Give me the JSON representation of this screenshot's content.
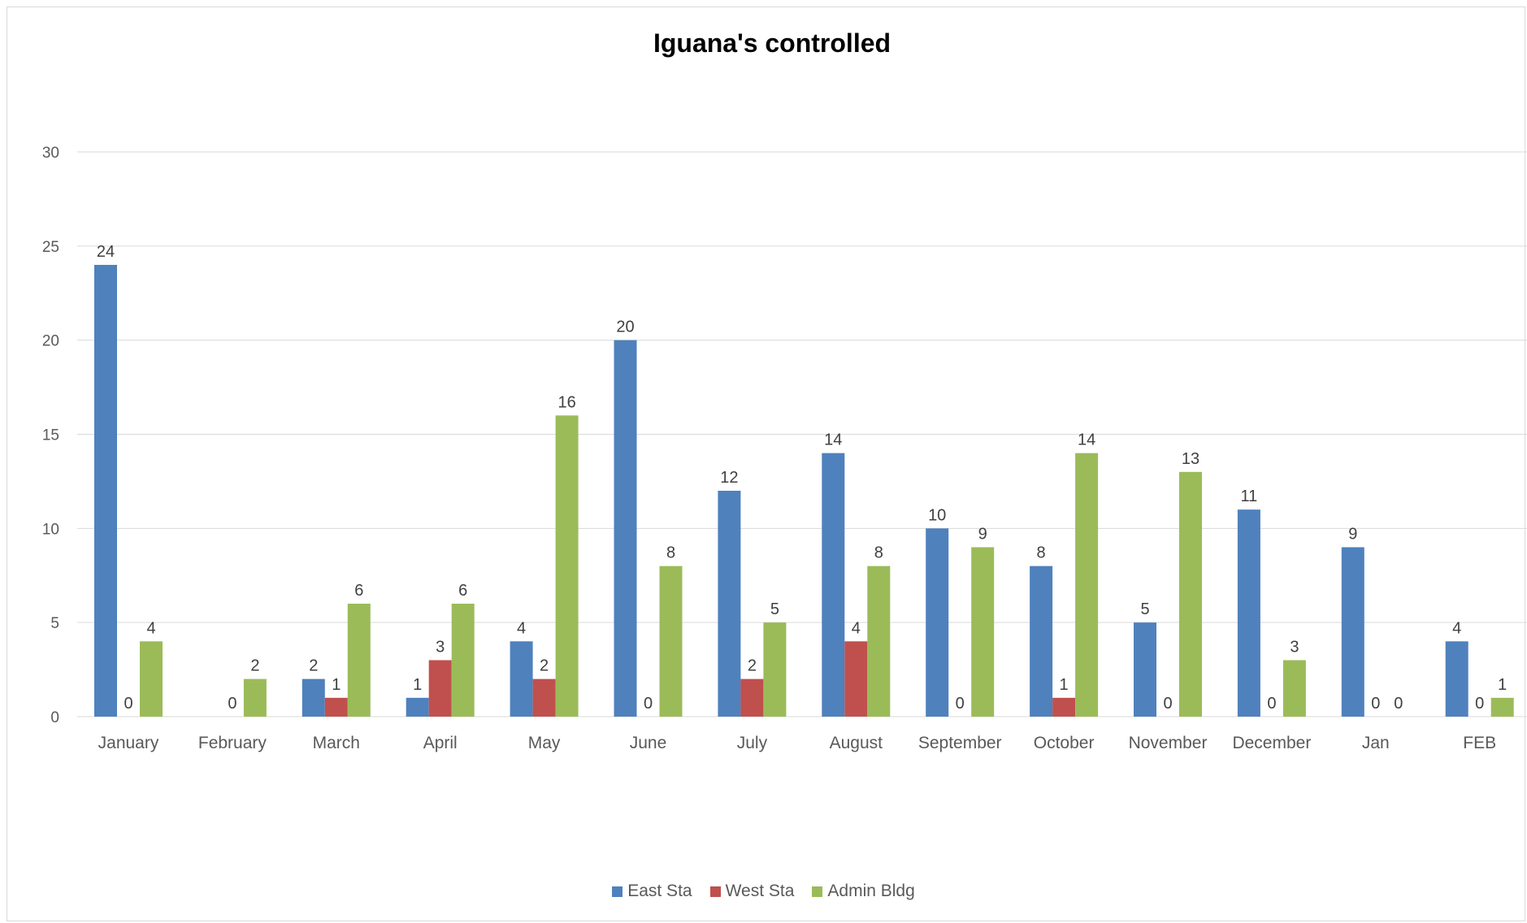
{
  "chart_data": {
    "type": "bar",
    "title": "Iguana's controlled",
    "xlabel": "",
    "ylabel": "",
    "ylim": [
      0,
      30
    ],
    "yticks": [
      0,
      5,
      10,
      15,
      20,
      25,
      30
    ],
    "grid": true,
    "legend_position": "bottom",
    "categories": [
      "January",
      "February",
      "March",
      "April",
      "May",
      "June",
      "July",
      "August",
      "September",
      "October",
      "November",
      "December",
      "Jan",
      "FEB"
    ],
    "series": [
      {
        "name": "East Sta",
        "color": "#4f81bd",
        "values": [
          24,
          null,
          2,
          1,
          4,
          20,
          12,
          14,
          10,
          8,
          5,
          11,
          9,
          4
        ]
      },
      {
        "name": "West Sta",
        "color": "#c0504d",
        "values": [
          0,
          0,
          1,
          3,
          2,
          0,
          2,
          4,
          0,
          1,
          0,
          0,
          0,
          0
        ]
      },
      {
        "name": "Admin Bldg",
        "color": "#9bbb59",
        "values": [
          4,
          2,
          6,
          6,
          16,
          8,
          5,
          8,
          9,
          14,
          13,
          3,
          0,
          1
        ]
      }
    ]
  }
}
